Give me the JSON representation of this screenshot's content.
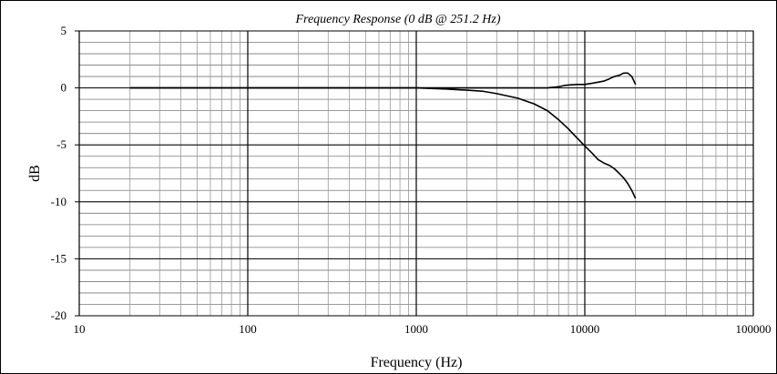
{
  "chart_data": {
    "type": "line",
    "title": "Frequency Response (0 dB @ 251.2 Hz)",
    "xlabel": "Frequency (Hz)",
    "ylabel": "dB",
    "x_scale": "log",
    "xlim": [
      10,
      100000
    ],
    "ylim": [
      -20,
      5
    ],
    "x_ticks": [
      10,
      100,
      1000,
      10000,
      100000
    ],
    "x_tick_labels": [
      "10",
      "100",
      "1000",
      "10000",
      "100000"
    ],
    "y_ticks": [
      5,
      0,
      -5,
      -10,
      -15,
      -20
    ],
    "y_tick_labels": [
      "5",
      "0",
      "-5",
      "-10",
      "-15",
      "-20"
    ],
    "grid": true,
    "legend": "none",
    "series": [
      {
        "x": [
          20,
          100,
          251.2,
          1000,
          1500,
          2000,
          3000,
          4000,
          5000,
          6000,
          7000,
          7500,
          8000,
          9000,
          10000,
          11000,
          12000,
          13000,
          14000,
          15000,
          16000,
          17000,
          18000,
          19000,
          20000
        ],
        "y": [
          0,
          0,
          0,
          0,
          0,
          0,
          0,
          0,
          0,
          0,
          0.1,
          0.2,
          0.25,
          0.3,
          0.3,
          0.4,
          0.5,
          0.6,
          0.8,
          1.0,
          1.1,
          1.3,
          1.3,
          1.0,
          0.3
        ]
      },
      {
        "x": [
          20,
          100,
          251.2,
          1000,
          1500,
          2000,
          2500,
          3000,
          4000,
          5000,
          6000,
          7000,
          8000,
          9000,
          10000,
          11000,
          12000,
          13000,
          14000,
          15000,
          16000,
          17000,
          18000,
          19000,
          20000
        ],
        "y": [
          0,
          0,
          0,
          0,
          -0.1,
          -0.2,
          -0.3,
          -0.5,
          -0.9,
          -1.4,
          -2.0,
          -2.8,
          -3.6,
          -4.4,
          -5.1,
          -5.7,
          -6.3,
          -6.6,
          -6.8,
          -7.1,
          -7.5,
          -7.9,
          -8.4,
          -9.0,
          -9.7
        ]
      }
    ]
  }
}
